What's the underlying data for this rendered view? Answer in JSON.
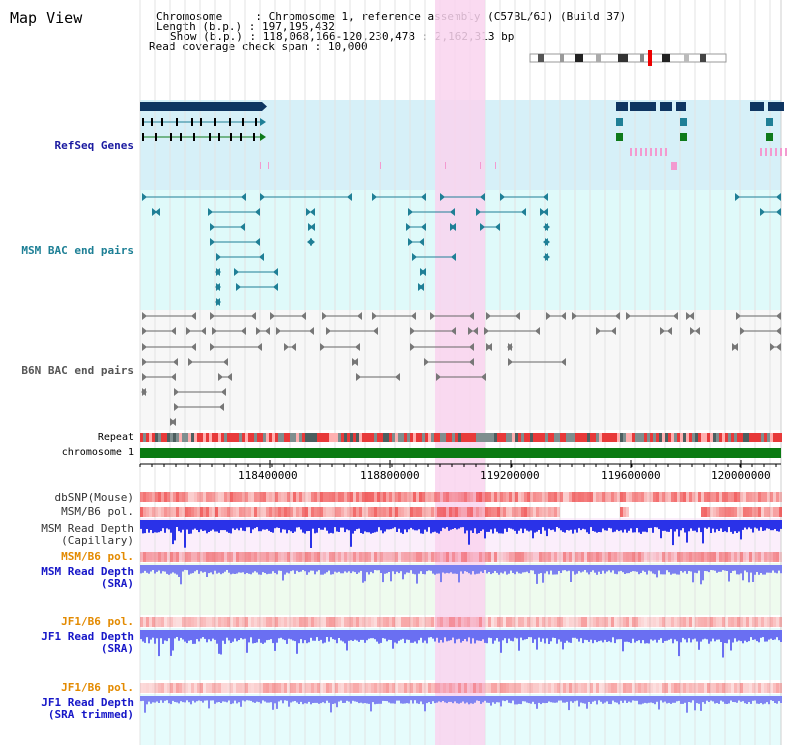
{
  "page_title": "Map View",
  "info": {
    "chromosome_key": "Chromosome",
    "chromosome_val": "Chromosome 1, reference assembly (C57BL/6J) (Build 37)",
    "length_key": "Length (b.p.)",
    "length_val": "197,195,432",
    "show_key": "Show (b.p.)",
    "show_val": "118,068,166-120,230,478 : 2,162,313 bp",
    "coverage_key": "Read coverage check span",
    "coverage_val": "10,000"
  },
  "tracks": {
    "refseq": "RefSeq Genes",
    "msm_bac": "MSM BAC end pairs",
    "b6n_bac": "B6N BAC end pairs",
    "repeat": "Repeat",
    "chromosome": "chromosome 1"
  },
  "axis_ticks": [
    "118400000",
    "118800000",
    "119200000",
    "119600000",
    "120000000"
  ],
  "lower_tracks": {
    "dbsnp": "dbSNP(Mouse)",
    "msm_b6_pol_1": "MSM/B6 pol.",
    "msm_depth_cap_1": "MSM Read Depth",
    "msm_depth_cap_2": "(Capillary)",
    "msm_b6_pol_2": "MSM/B6 pol.",
    "msm_depth_sra_1": "MSM Read Depth",
    "msm_depth_sra_2": "(SRA)",
    "jf1_b6_pol_1": "JF1/B6 pol.",
    "jf1_depth_sra_1": "JF1 Read Depth",
    "jf1_depth_sra_2": "(SRA)",
    "jf1_b6_pol_2": "JF1/B6 pol.",
    "jf1_depth_trim_1": "JF1 Read Depth",
    "jf1_depth_trim_2": "(SRA trimmed)"
  },
  "colors": {
    "refseq_bg": "#d6f0f8",
    "highlight": "#f9d3ef",
    "gene_dark": "#0f3561",
    "teal": "#1f7f96",
    "green_gene": "#0d7a1a",
    "chrom_bar": "#0a7a12",
    "depth_blue": "#2a32e8",
    "pol_red": "#ee3b3b"
  }
}
